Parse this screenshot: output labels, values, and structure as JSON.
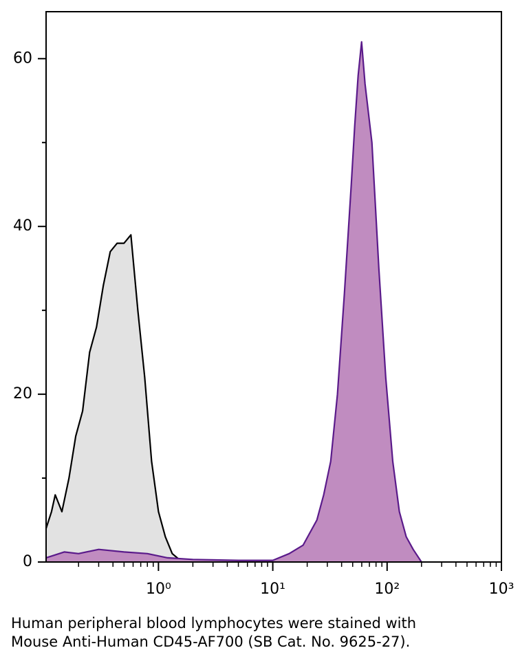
{
  "chart_data": {
    "type": "histogram-overlay",
    "caption": [
      "Human peripheral blood lymphocytes were stained with",
      "Mouse Anti-Human CD45-AF700 (SB Cat. No. 9625-27)."
    ],
    "xscale": "log",
    "xlim": [
      0.104,
      1000
    ],
    "ylim": [
      0,
      65.6
    ],
    "xticks": [
      {
        "value": 1,
        "label": "10⁰"
      },
      {
        "value": 10,
        "label": "10¹"
      },
      {
        "value": 100,
        "label": "10²"
      },
      {
        "value": 1000,
        "label": "10³"
      }
    ],
    "xminorticks": [
      0.2,
      0.3,
      0.4,
      0.5,
      0.6,
      0.7,
      0.8,
      0.9,
      2,
      3,
      4,
      5,
      6,
      7,
      8,
      9,
      20,
      30,
      40,
      50,
      60,
      70,
      80,
      90,
      200,
      300,
      400,
      500,
      600,
      700,
      800,
      900
    ],
    "yticks": [
      0,
      20,
      40,
      60
    ],
    "yminorticks": [
      10,
      30,
      50
    ],
    "series": [
      {
        "fill": "#e2e2e2",
        "color": "#000000",
        "x": [
          0.104,
          0.116,
          0.125,
          0.143,
          0.165,
          0.189,
          0.217,
          0.25,
          0.287,
          0.33,
          0.379,
          0.435,
          0.5,
          0.574,
          0.66,
          0.758,
          0.871,
          1.0,
          1.149,
          1.32,
          1.52,
          1.74
        ],
        "values": [
          4,
          6,
          8,
          6,
          10,
          15,
          18,
          25,
          28,
          33,
          37,
          38,
          38,
          39,
          30,
          22,
          12,
          6,
          3,
          1,
          0.3,
          0
        ]
      },
      {
        "fill": "#c08cc0",
        "color": "#5a1a8a",
        "x": [
          0.104,
          0.15,
          0.2,
          0.3,
          0.5,
          0.8,
          1.2,
          2,
          5,
          10,
          13.9,
          18.4,
          24.3,
          27.9,
          32.1,
          36.8,
          42.3,
          48.6,
          52.1,
          55.8,
          59.8,
          64.1,
          73.6,
          84.7,
          97.3,
          112,
          128,
          147,
          169,
          200
        ],
        "values": [
          0.5,
          1.2,
          1,
          1.5,
          1.2,
          1,
          0.5,
          0.3,
          0.2,
          0.2,
          1,
          2,
          5,
          8,
          12,
          20,
          32,
          45,
          52,
          58,
          62,
          57,
          50,
          35,
          22,
          12,
          6,
          3,
          1.5,
          0
        ]
      }
    ]
  }
}
